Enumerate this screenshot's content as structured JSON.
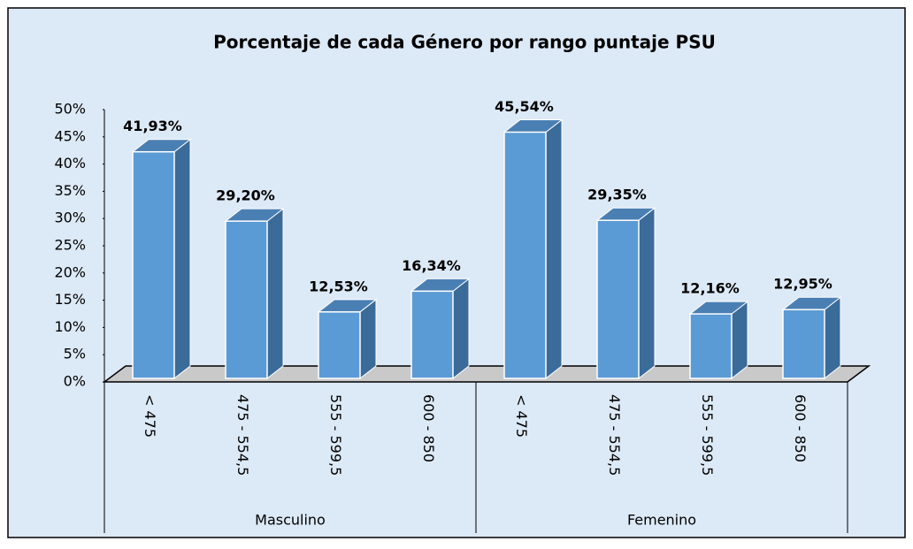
{
  "chart_data": {
    "type": "bar",
    "title": "Porcentaje de cada Género por rango puntaje PSU",
    "groups": [
      {
        "name": "Masculino",
        "categories": [
          "< 475",
          "475 - 554,5",
          "555 - 599,5",
          "600 - 850"
        ],
        "values": [
          41.93,
          29.2,
          12.53,
          16.34
        ],
        "value_labels": [
          "41,93%",
          "29,20%",
          "12,53%",
          "16,34%"
        ]
      },
      {
        "name": "Femenino",
        "categories": [
          "< 475",
          "475 - 554,5",
          "555 - 599,5",
          "600 - 850"
        ],
        "values": [
          45.54,
          29.35,
          12.16,
          12.95
        ],
        "value_labels": [
          "45,54%",
          "29,35%",
          "12,16%",
          "12,95%"
        ]
      }
    ],
    "color": "#5b9bd5",
    "ylim": [
      0,
      50
    ],
    "yticks": [
      {
        "value": 0,
        "label": "0%"
      },
      {
        "value": 5,
        "label": "5%"
      },
      {
        "value": 10,
        "label": "10%"
      },
      {
        "value": 15,
        "label": "15%"
      },
      {
        "value": 20,
        "label": "20%"
      },
      {
        "value": 25,
        "label": "25%"
      },
      {
        "value": 30,
        "label": "30%"
      },
      {
        "value": 35,
        "label": "35%"
      },
      {
        "value": 40,
        "label": "40%"
      },
      {
        "value": 45,
        "label": "45%"
      },
      {
        "value": 50,
        "label": "50%"
      }
    ]
  }
}
